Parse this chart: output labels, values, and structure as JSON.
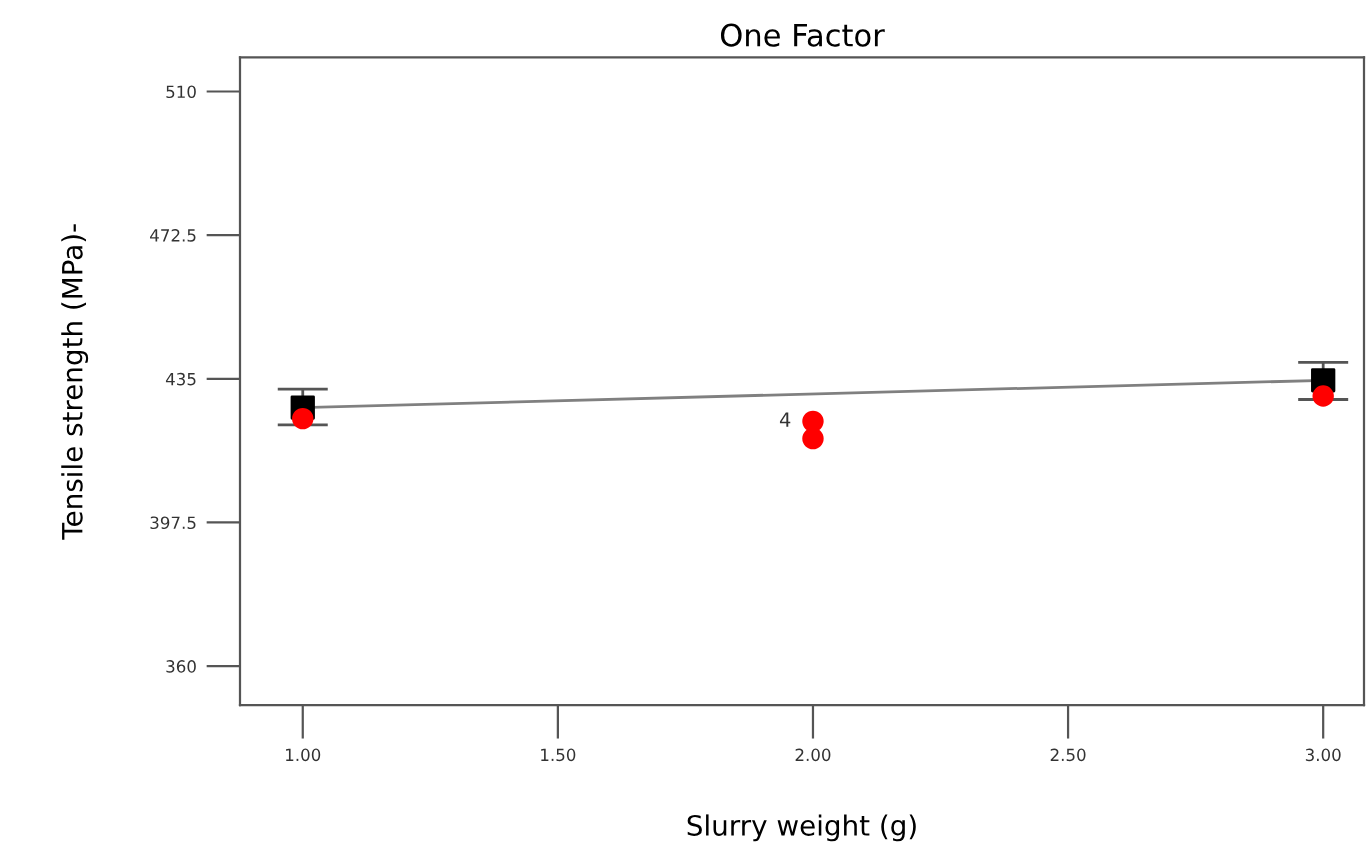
{
  "chart_data": {
    "type": "scatter",
    "title": "One Factor",
    "xlabel": "Slurry weight (g)",
    "ylabel": "Tensile strength (MPa)-",
    "xlim": [
      0.877,
      3.08
    ],
    "ylim": [
      349.8,
      518.9
    ],
    "xticks": [
      {
        "value": 1,
        "label": "1.00"
      },
      {
        "value": 1.5,
        "label": "1.50"
      },
      {
        "value": 2,
        "label": "2.00"
      },
      {
        "value": 2.5,
        "label": "2.50"
      },
      {
        "value": 3,
        "label": "3.00"
      }
    ],
    "yticks": [
      360,
      397.5,
      435,
      472.5,
      510
    ],
    "grid": false,
    "legend": false,
    "series": [
      {
        "type": "line",
        "color": "#808080",
        "x": [
          1,
          3
        ],
        "values": [
          427.5,
          434.6
        ],
        "marker": "none",
        "line_style": "solid"
      },
      {
        "color": "#000000",
        "x": [
          1,
          3
        ],
        "values": [
          427.5,
          434.6
        ],
        "marker": "square",
        "errors": [
          [
            423.0,
            432.3
          ],
          [
            429.6,
            439.3
          ]
        ]
      },
      {
        "color": "#ff0000",
        "x": [
          1,
          2,
          2,
          3
        ],
        "values": [
          424.6,
          423.9,
          419.4,
          430.5
        ],
        "marker": "circle"
      }
    ],
    "annotations": [
      {
        "text": "4",
        "x": 2,
        "y": 423.9
      }
    ]
  }
}
